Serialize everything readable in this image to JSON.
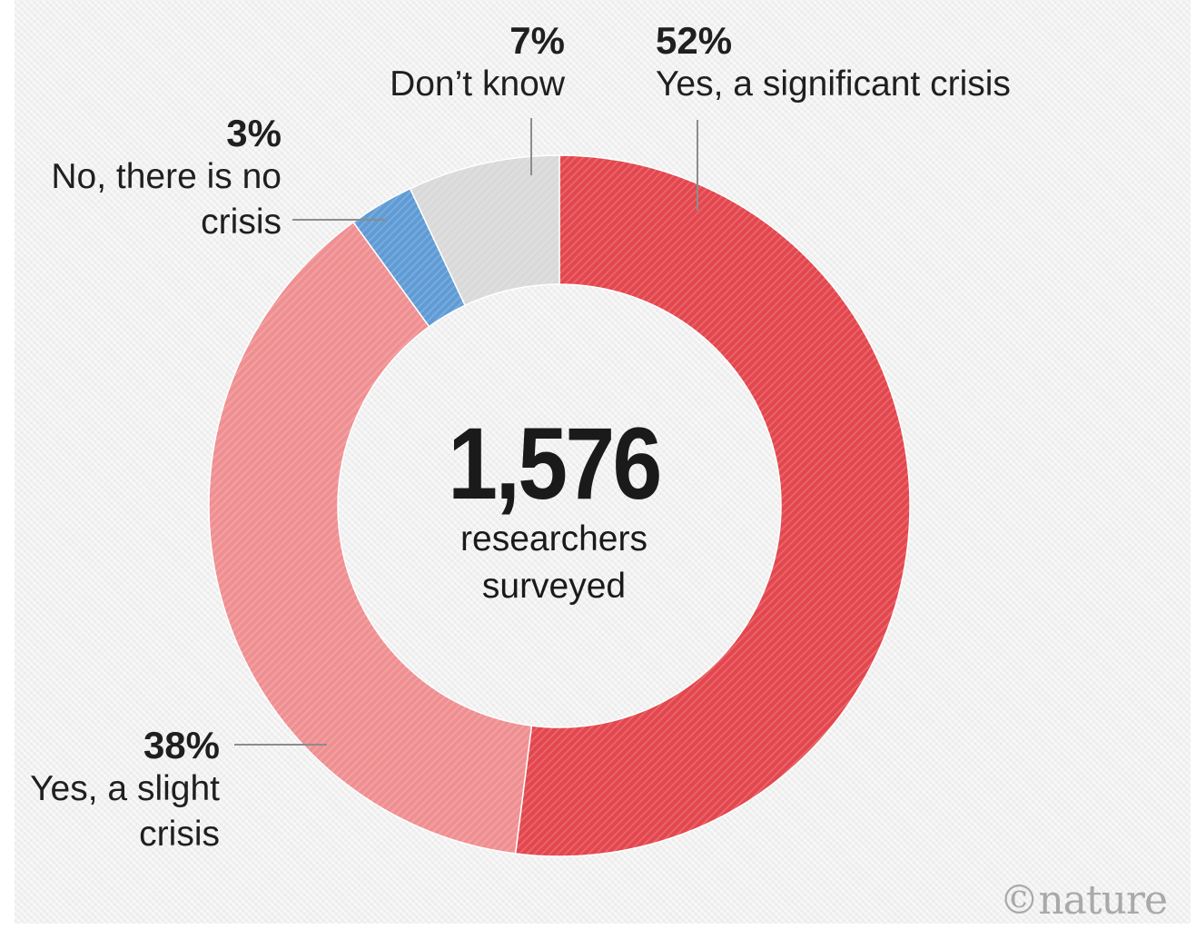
{
  "chart_data": {
    "type": "pie",
    "style": "donut",
    "slices": [
      {
        "label": "Yes, a significant crisis",
        "value": 52,
        "value_label": "52%",
        "color": "#e3464d"
      },
      {
        "label": "Yes, a slight crisis",
        "value": 38,
        "value_label": "38%",
        "color": "#ef8f91"
      },
      {
        "label": "No, there is no crisis",
        "value": 3,
        "value_label": "3%",
        "color": "#5f9bd5"
      },
      {
        "label": "Don’t know",
        "value": 7,
        "value_label": "7%",
        "color": "#d9d9d9"
      }
    ],
    "center_value": "1,576",
    "center_caption_line1": "researchers",
    "center_caption_line2": "surveyed"
  },
  "labels": {
    "significant": {
      "pct": "52%",
      "line1": "Yes, a significant crisis"
    },
    "dontknow": {
      "pct": "7%",
      "line1": "Don’t know"
    },
    "nocrisis": {
      "pct": "3%",
      "line1": "No, there is no",
      "line2": "crisis"
    },
    "slight": {
      "pct": "38%",
      "line1": "Yes, a slight",
      "line2": "crisis"
    }
  },
  "logo": "©nature",
  "colors": {
    "background": "#f1f1f1",
    "leader": "#8c8c8c"
  }
}
